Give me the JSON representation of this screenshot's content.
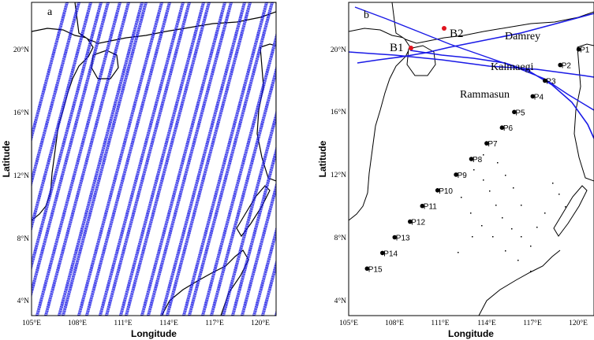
{
  "panel_a": {
    "letter": "a",
    "xlabel": "Longitude",
    "ylabel": "Latitude",
    "lon_range": [
      105,
      121
    ],
    "lat_range": [
      3,
      23
    ],
    "x_ticks": [
      "105°E",
      "108°E",
      "111°E",
      "114°E",
      "117°E",
      "120°E"
    ],
    "y_ticks": [
      "4°N",
      "8°N",
      "12°N",
      "16°N",
      "20°N"
    ],
    "track_color": "#1a1ae6"
  },
  "panel_b": {
    "letter": "b",
    "xlabel": "Longitude",
    "ylabel": "Latitude",
    "lon_range": [
      105,
      121
    ],
    "lat_range": [
      3,
      23
    ],
    "x_ticks": [
      "105°E",
      "108°E",
      "111°E",
      "114°E",
      "117°E",
      "120°E"
    ],
    "y_ticks": [
      "4°N",
      "8°N",
      "12°N",
      "16°N",
      "20°N"
    ],
    "typhoons": [
      {
        "name": "Damrey",
        "color": "#1a1ae6"
      },
      {
        "name": "Kalmaegi",
        "color": "#1a1ae6"
      },
      {
        "name": "Rammasun",
        "color": "#1a1ae6"
      }
    ],
    "buoys": [
      {
        "label": "B1",
        "color": "#e0141e"
      },
      {
        "label": "B2",
        "color": "#e0141e"
      }
    ],
    "stations": [
      {
        "label": "P1",
        "lon": 120.0,
        "lat": 20.0
      },
      {
        "label": "P2",
        "lon": 118.8,
        "lat": 19.0
      },
      {
        "label": "P3",
        "lon": 117.8,
        "lat": 18.0
      },
      {
        "label": "P4",
        "lon": 117.0,
        "lat": 17.0
      },
      {
        "label": "P5",
        "lon": 115.8,
        "lat": 16.0
      },
      {
        "label": "P6",
        "lon": 115.0,
        "lat": 15.0
      },
      {
        "label": "P7",
        "lon": 114.0,
        "lat": 14.0
      },
      {
        "label": "P8",
        "lon": 113.0,
        "lat": 13.0
      },
      {
        "label": "P9",
        "lon": 112.0,
        "lat": 12.0
      },
      {
        "label": "P10",
        "lon": 110.8,
        "lat": 11.0
      },
      {
        "label": "P11",
        "lon": 109.8,
        "lat": 10.0
      },
      {
        "label": "P12",
        "lon": 109.0,
        "lat": 9.0
      },
      {
        "label": "P13",
        "lon": 108.0,
        "lat": 8.0
      },
      {
        "label": "P14",
        "lon": 107.2,
        "lat": 7.0
      },
      {
        "label": "P15",
        "lon": 106.2,
        "lat": 6.0
      }
    ]
  }
}
